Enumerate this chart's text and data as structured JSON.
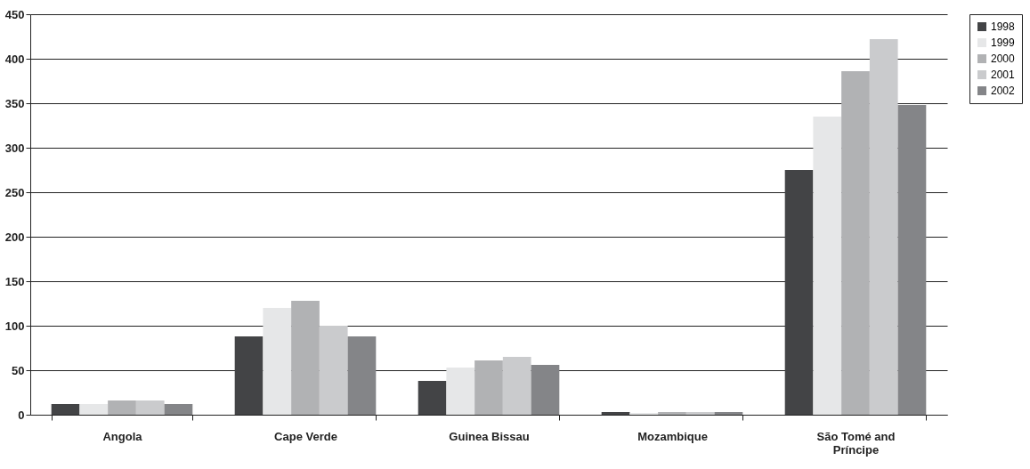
{
  "chart_data": {
    "type": "bar",
    "categories": [
      "Angola",
      "Cape Verde",
      "Guinea Bissau",
      "Mozambique",
      "São Tomé and Príncipe"
    ],
    "series": [
      {
        "name": "1998",
        "color": "#434446",
        "values": [
          12,
          88,
          38,
          3,
          275
        ]
      },
      {
        "name": "1999",
        "color": "#e6e7e8",
        "values": [
          12,
          120,
          53,
          2,
          335
        ]
      },
      {
        "name": "2000",
        "color": "#b1b2b4",
        "values": [
          16,
          128,
          61,
          3,
          386
        ]
      },
      {
        "name": "2001",
        "color": "#cacbcd",
        "values": [
          16,
          100,
          65,
          3,
          422
        ]
      },
      {
        "name": "2002",
        "color": "#848588",
        "values": [
          12,
          88,
          56,
          3,
          348
        ]
      }
    ],
    "ylim": [
      0,
      450
    ],
    "yticks": [
      0,
      50,
      100,
      150,
      200,
      250,
      300,
      350,
      400,
      450
    ],
    "grid": "y",
    "legend": "right"
  }
}
